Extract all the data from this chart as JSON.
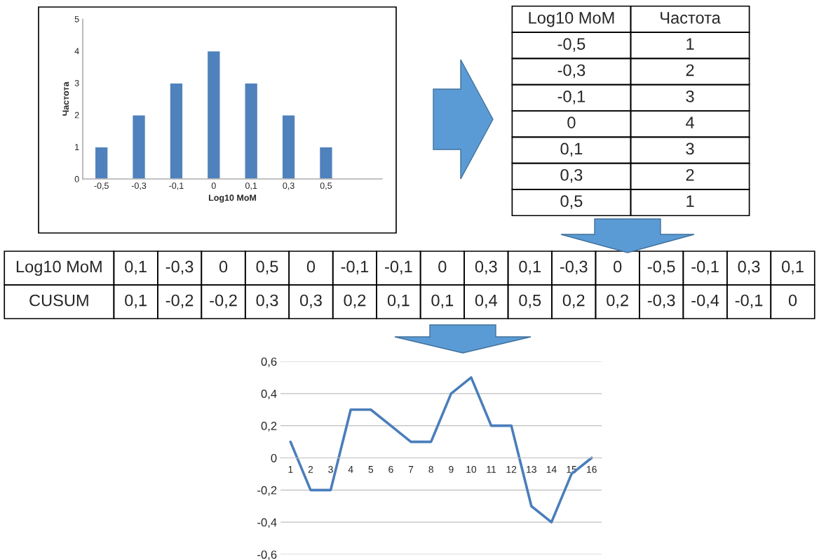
{
  "chart_data": [
    {
      "type": "bar",
      "xlabel": "Log10 MoM",
      "ylabel": "Частота",
      "categories": [
        "-0,5",
        "-0,3",
        "-0,1",
        "0",
        "0,1",
        "0,3",
        "0,5",
        null
      ],
      "values": [
        1,
        2,
        3,
        4,
        3,
        2,
        1,
        null
      ],
      "color": "#4f81bd",
      "ylim": [
        0,
        5
      ],
      "yticks": [
        0,
        1,
        2,
        3,
        4,
        5
      ],
      "grid": false
    },
    {
      "type": "other",
      "annotations": [
        "Log10 MoM",
        "Частота",
        "-0,5",
        "1",
        "-0,3",
        "2",
        "-0,1",
        "3",
        "0",
        "4",
        "0,1",
        "3",
        "0,3",
        "2",
        "0,5",
        "1"
      ]
    },
    {
      "type": "other",
      "annotations": [
        "Log10 MoM",
        "0,1",
        "-0,3",
        "0",
        "0,5",
        "0",
        "-0,1",
        "-0,1",
        "0",
        "0,3",
        "0,1",
        "-0,3",
        "0",
        "-0,5",
        "-0,1",
        "0,3",
        "0,1",
        "CUSUM",
        "0,1",
        "-0,2",
        "-0,2",
        "0,3",
        "0,3",
        "0,2",
        "0,1",
        "0,1",
        "0,4",
        "0,5",
        "0,2",
        "0,2",
        "-0,3",
        "-0,4",
        "-0,1",
        "0"
      ]
    },
    {
      "type": "line",
      "categories": [
        "1",
        "2",
        "3",
        "4",
        "5",
        "6",
        "7",
        "8",
        "9",
        "10",
        "11",
        "12",
        "13",
        "14",
        "15",
        "16"
      ],
      "values": [
        0.1,
        -0.2,
        -0.2,
        0.3,
        0.3,
        0.2,
        0.1,
        0.1,
        0.4,
        0.5,
        0.2,
        0.2,
        -0.3,
        -0.4,
        -0.1,
        0
      ],
      "color": "#4a7ebb",
      "ylim": [
        -0.6,
        0.6
      ],
      "yticks": [
        {
          "value": -0.6,
          "label": "-0,6"
        },
        {
          "value": -0.4,
          "label": "-0,4"
        },
        {
          "value": -0.2,
          "label": "-0,2"
        },
        0,
        {
          "value": 0.2,
          "label": "0,2"
        },
        {
          "value": 0.4,
          "label": "0,4"
        },
        {
          "value": 0.6,
          "label": "0,6"
        }
      ],
      "grid": "y",
      "marker": "none"
    }
  ]
}
